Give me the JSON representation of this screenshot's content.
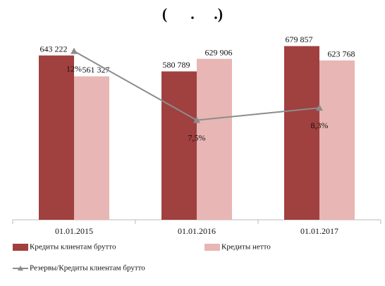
{
  "chart_data": {
    "type": "bar",
    "title": "(      .     .)",
    "categories": [
      "01.01.2015",
      "01.01.2016",
      "01.01.2017"
    ],
    "ylim": [
      0,
      750000
    ],
    "y2lim": [
      1,
      13.5
    ],
    "series": [
      {
        "name": "Кредиты клиентам брутто",
        "color": "#a0403f",
        "values": [
          643222,
          580789,
          679857
        ],
        "value_labels": [
          "643 222",
          "580 789",
          "679 857"
        ]
      },
      {
        "name": "Кредиты нетто",
        "color": "#e8b6b4",
        "values": [
          561327,
          629906,
          623768
        ],
        "value_labels": [
          "561 327",
          "629 906",
          "623 768"
        ]
      },
      {
        "name": "Резервы/Кредиты клиентам брутто",
        "color": "#8c8c8c",
        "type": "line",
        "axis": "y2",
        "values": [
          12,
          7.5,
          8.3
        ],
        "value_labels": [
          "12%",
          "7,5%",
          "8,3%"
        ]
      }
    ]
  }
}
